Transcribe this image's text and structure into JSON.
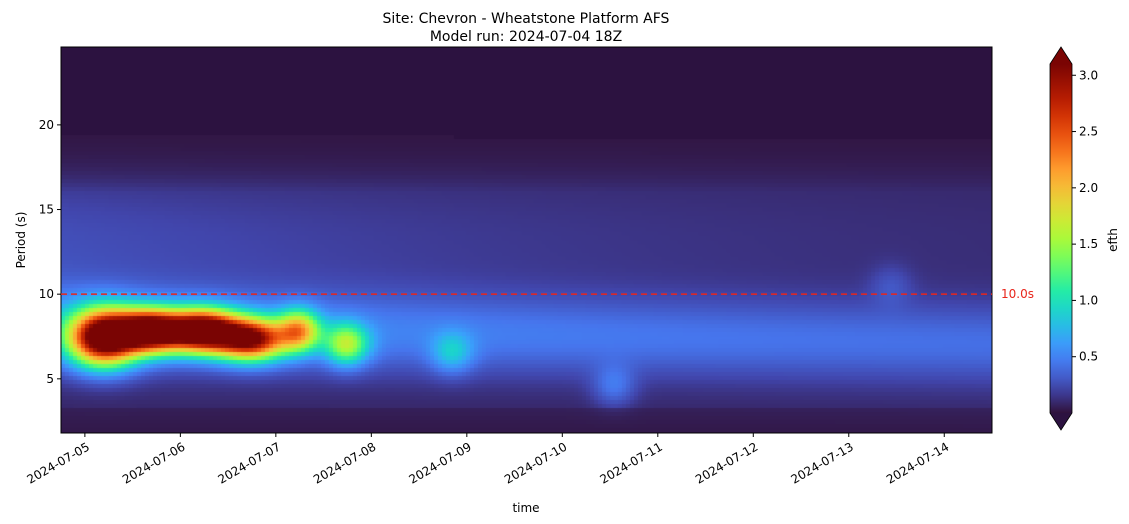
{
  "chart_data": {
    "type": "heatmap",
    "title": "Site: Chevron - Wheatstone Platform AFS",
    "subtitle": "Model run: 2024-07-04 18Z",
    "xlabel": "time",
    "ylabel": "Period (s)",
    "xlim": [
      "2024-07-04 18:00",
      "2024-07-14 12:00"
    ],
    "ylim": [
      1.8,
      24.6
    ],
    "x_ticks": [
      "2024-07-05",
      "2024-07-06",
      "2024-07-07",
      "2024-07-08",
      "2024-07-09",
      "2024-07-10",
      "2024-07-11",
      "2024-07-12",
      "2024-07-13",
      "2024-07-14"
    ],
    "y_ticks": [
      5,
      10,
      15,
      20
    ],
    "colorbar": {
      "label": "efth",
      "range": [
        0.0,
        3.1
      ],
      "ticks": [
        "0.5",
        "1.0",
        "1.5",
        "2.0",
        "2.5",
        "3.0"
      ],
      "colormap": "turbo",
      "extend": "both",
      "under_color": "#2c1240",
      "over_color": "#7a0403"
    },
    "reference_line": {
      "period": 10.0,
      "label": "10.0s",
      "color": "#e8261b",
      "style": "dashed"
    },
    "features": [
      {
        "day": 0.45,
        "period": 7.4,
        "efth": 3.5,
        "note": "core"
      },
      {
        "day": 0.95,
        "period": 7.8,
        "efth": 3.5
      },
      {
        "day": 1.5,
        "period": 7.8,
        "efth": 3.5
      },
      {
        "day": 2.0,
        "period": 7.3,
        "efth": 3.0
      },
      {
        "day": 2.5,
        "period": 7.8,
        "efth": 2.0
      },
      {
        "day": 3.0,
        "period": 7.0,
        "efth": 1.6
      },
      {
        "day": 4.1,
        "period": 6.5,
        "efth": 0.9
      },
      {
        "day": 5.8,
        "period": 4.5,
        "efth": 0.7
      },
      {
        "day": 8.7,
        "period": 10.5,
        "efth": 0.55
      }
    ]
  }
}
